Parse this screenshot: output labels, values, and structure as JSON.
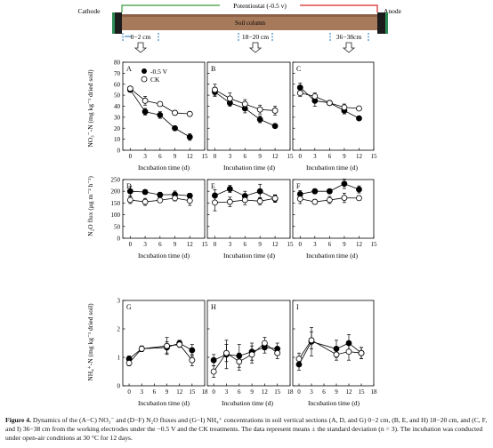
{
  "diagram": {
    "cathode": "Cathode",
    "anode": "Anode",
    "potentiostat": "Potentiostat (-0.5 v)",
    "soil_column": "Soil column",
    "sections": [
      "0−2 cm",
      "18−20 cm",
      "36−38cm"
    ]
  },
  "colors": {
    "column_brown": "#a77a5c",
    "electrode": "#1c1c1c",
    "electrode_green": "#2e8b57",
    "wire_red": "#d62828",
    "wire_green": "#3a9a3a"
  },
  "legend": {
    "treatment": "-0.5 V",
    "control": "CK"
  },
  "row_labels": {
    "no3": [
      "NO₃⁻-N (mg kg⁻¹ dried soil)"
    ],
    "n2o": [
      "N₂O flux (μg m⁻² h⁻¹)"
    ],
    "nh4": [
      "NH₄⁺-N (mg kg⁻¹ dried soil)"
    ]
  },
  "xlabel": "Incubation time (d)",
  "chart_data": [
    {
      "panel": "A",
      "type": "line",
      "ylim": [
        0,
        80
      ],
      "yticks": [
        0,
        10,
        20,
        30,
        40,
        50,
        60,
        70,
        80
      ],
      "xlim": [
        -1.5,
        15
      ],
      "xticks": [
        0,
        3,
        6,
        9,
        12,
        15
      ],
      "series": [
        {
          "name": "-0.5 V",
          "x": [
            0,
            3,
            6,
            9,
            12
          ],
          "y": [
            55,
            35,
            32,
            20,
            12
          ],
          "err": [
            2,
            3,
            3,
            2,
            3
          ]
        },
        {
          "name": "CK",
          "x": [
            0,
            3,
            6,
            9,
            12
          ],
          "y": [
            56,
            45,
            42,
            34,
            33
          ],
          "err": [
            2,
            4,
            2,
            2,
            2
          ]
        }
      ]
    },
    {
      "panel": "B",
      "type": "line",
      "ylim": [
        0,
        80
      ],
      "xlim": [
        -1.5,
        15
      ],
      "xticks": [
        0,
        3,
        6,
        9,
        12,
        15
      ],
      "series": [
        {
          "name": "-0.5 V",
          "x": [
            0,
            3,
            6,
            9,
            12
          ],
          "y": [
            53,
            43,
            38,
            28,
            22
          ],
          "err": [
            4,
            3,
            4,
            3,
            2
          ]
        },
        {
          "name": "CK",
          "x": [
            0,
            3,
            6,
            9,
            12
          ],
          "y": [
            55,
            47,
            42,
            37,
            36
          ],
          "err": [
            5,
            5,
            4,
            4,
            4
          ]
        }
      ]
    },
    {
      "panel": "C",
      "type": "line",
      "ylim": [
        0,
        80
      ],
      "xlim": [
        -1.5,
        15
      ],
      "xticks": [
        0,
        3,
        6,
        9,
        12,
        15
      ],
      "series": [
        {
          "name": "-0.5 V",
          "x": [
            0,
            3,
            6,
            9,
            12
          ],
          "y": [
            57,
            45,
            43,
            36,
            29
          ],
          "err": [
            4,
            5,
            2,
            3,
            2
          ]
        },
        {
          "name": "CK",
          "x": [
            0,
            3,
            6,
            9,
            12
          ],
          "y": [
            52,
            49,
            43,
            39,
            38
          ],
          "err": [
            3,
            3,
            2,
            3,
            2
          ]
        }
      ]
    },
    {
      "panel": "D",
      "type": "line",
      "ylim": [
        0,
        250
      ],
      "yticks": [
        0,
        50,
        100,
        150,
        200,
        250
      ],
      "xlim": [
        -1.5,
        15
      ],
      "xticks": [
        0,
        3,
        6,
        9,
        12,
        15
      ],
      "series": [
        {
          "name": "-0.5 V",
          "x": [
            0,
            3,
            6,
            9,
            12
          ],
          "y": [
            200,
            197,
            185,
            186,
            181
          ],
          "err": [
            20,
            10,
            10,
            15,
            10
          ]
        },
        {
          "name": "CK",
          "x": [
            0,
            3,
            6,
            9,
            12
          ],
          "y": [
            163,
            155,
            162,
            171,
            160
          ],
          "err": [
            15,
            15,
            10,
            12,
            20
          ]
        }
      ]
    },
    {
      "panel": "E",
      "type": "line",
      "ylim": [
        0,
        250
      ],
      "xlim": [
        -1.5,
        15
      ],
      "xticks": [
        0,
        3,
        6,
        9,
        12,
        15
      ],
      "series": [
        {
          "name": "-0.5 V",
          "x": [
            0,
            3,
            6,
            9,
            12
          ],
          "y": [
            182,
            210,
            180,
            200,
            168
          ],
          "err": [
            25,
            15,
            20,
            30,
            15
          ]
        },
        {
          "name": "CK",
          "x": [
            0,
            3,
            6,
            9,
            12
          ],
          "y": [
            152,
            155,
            163,
            158,
            170
          ],
          "err": [
            35,
            20,
            20,
            15,
            15
          ]
        }
      ]
    },
    {
      "panel": "F",
      "type": "line",
      "ylim": [
        0,
        250
      ],
      "xlim": [
        -1.5,
        15
      ],
      "xticks": [
        0,
        3,
        6,
        9,
        12,
        15
      ],
      "series": [
        {
          "name": "-0.5 V",
          "x": [
            0,
            3,
            6,
            9,
            12
          ],
          "y": [
            188,
            200,
            200,
            232,
            208
          ],
          "err": [
            15,
            10,
            10,
            20,
            15
          ]
        },
        {
          "name": "CK",
          "x": [
            0,
            3,
            6,
            9,
            12
          ],
          "y": [
            168,
            155,
            163,
            172,
            171
          ],
          "err": [
            20,
            10,
            15,
            20,
            10
          ]
        }
      ]
    },
    {
      "panel": "G",
      "type": "line",
      "ylim": [
        0,
        3
      ],
      "yticks": [
        0,
        1,
        2,
        3
      ],
      "xlim": [
        -1.5,
        18
      ],
      "xticks": [
        0,
        3,
        6,
        9,
        12,
        15,
        18
      ],
      "series": [
        {
          "name": "-0.5 V",
          "x": [
            0,
            3,
            9,
            12,
            15
          ],
          "y": [
            0.95,
            1.3,
            1.35,
            1.5,
            1.25
          ],
          "err": [
            0.1,
            0.1,
            0.2,
            0.1,
            0.2
          ]
        },
        {
          "name": "CK",
          "x": [
            0,
            3,
            9,
            12,
            15
          ],
          "y": [
            0.8,
            1.3,
            1.4,
            1.45,
            0.9
          ],
          "err": [
            0.1,
            0.1,
            0.3,
            0.1,
            0.2
          ]
        }
      ]
    },
    {
      "panel": "H",
      "type": "line",
      "ylim": [
        0,
        3
      ],
      "xlim": [
        -1.5,
        18
      ],
      "xticks": [
        0,
        3,
        6,
        9,
        12,
        15,
        18
      ],
      "series": [
        {
          "name": "-0.5 V",
          "x": [
            0,
            3,
            6,
            9,
            12,
            15
          ],
          "y": [
            0.9,
            1.1,
            1.05,
            1.2,
            1.35,
            1.3
          ],
          "err": [
            0.2,
            0.5,
            0.4,
            0.3,
            0.2,
            0.2
          ]
        },
        {
          "name": "CK",
          "x": [
            0,
            3,
            6,
            9,
            12,
            15
          ],
          "y": [
            0.5,
            1.15,
            0.85,
            1.1,
            1.5,
            1.15
          ],
          "err": [
            0.2,
            0.3,
            0.3,
            0.3,
            0.2,
            0.2
          ]
        }
      ]
    },
    {
      "panel": "I",
      "type": "line",
      "ylim": [
        0,
        3
      ],
      "xlim": [
        -1.5,
        18
      ],
      "xticks": [
        0,
        3,
        6,
        9,
        12,
        15,
        18
      ],
      "series": [
        {
          "name": "-0.5 V",
          "x": [
            0,
            3,
            9,
            12,
            15
          ],
          "y": [
            0.75,
            1.55,
            1.3,
            1.5,
            1.15
          ],
          "err": [
            0.2,
            0.5,
            0.3,
            0.3,
            0.2
          ]
        },
        {
          "name": "CK",
          "x": [
            0,
            3,
            9,
            12,
            15
          ],
          "y": [
            0.95,
            1.6,
            1.1,
            1.2,
            1.15
          ],
          "err": [
            0.2,
            0.3,
            0.2,
            0.3,
            0.2
          ]
        }
      ]
    }
  ],
  "caption": {
    "label": "Figure 4.",
    "text": "Dynamics of the (A−C) NO₃⁻ and (D−F) N₂O fluxes and (G−I) NH₄⁺ concentrations in soil vertical sections (A, D, and G) 0−2 cm, (B, E, and H) 18−20 cm, and (C, F, and I) 36−38 cm from the working electrodes under the −0.5 V and the CK treatments. The data represent means ± the standard deviation (n = 3). The incubation was conducted under open-air conditions at 30 °C for 12 days."
  }
}
